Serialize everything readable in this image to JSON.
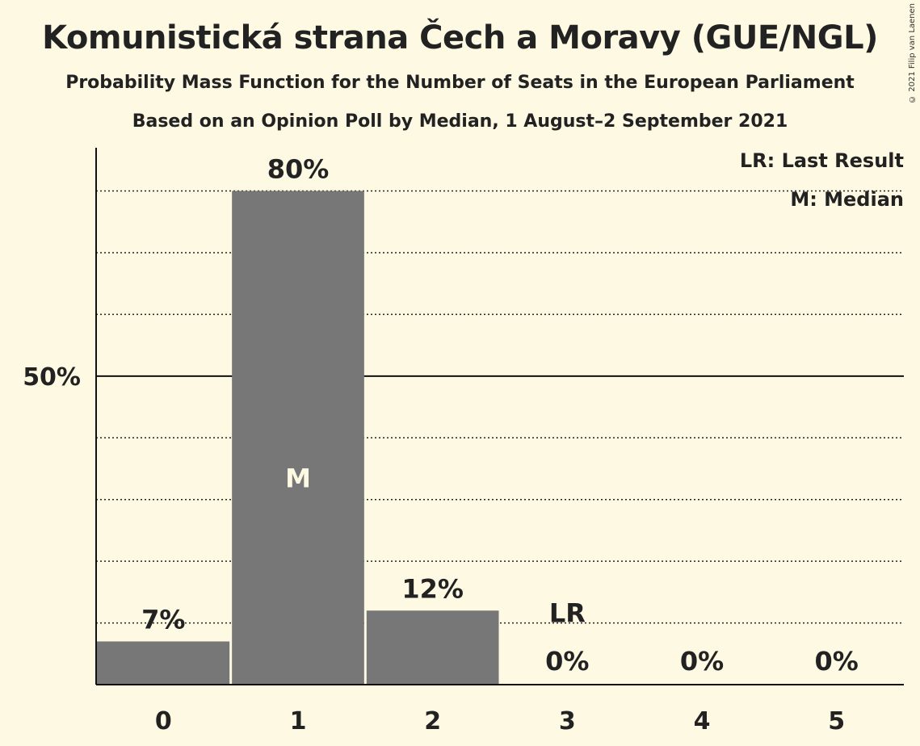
{
  "title": "Komunistická strana Čech a Moravy (GUE/NGL)",
  "subtitle1": "Probability Mass Function for the Number of Seats in the European Parliament",
  "subtitle2": "Based on an Opinion Poll by Median, 1 August–2 September 2021",
  "copyright": "© 2021 Filip van Laenen",
  "legend": {
    "last_result": "LR: Last Result",
    "median": "M: Median"
  },
  "colors": {
    "background": "#fdf9e2",
    "bar": "#777777",
    "text": "#222222",
    "median_marker": "#fdf9e2"
  },
  "chart_data": {
    "type": "bar",
    "title": "Komunistická strana Čech a Moravy (GUE/NGL)",
    "xlabel": "",
    "ylabel": "",
    "categories": [
      "0",
      "1",
      "2",
      "3",
      "4",
      "5"
    ],
    "values": [
      7,
      80,
      12,
      0,
      0,
      0
    ],
    "data_labels": [
      "7%",
      "80%",
      "12%",
      "0%",
      "0%",
      "0%"
    ],
    "ylim": [
      0,
      87
    ],
    "y_tick_label": "50%",
    "y_tick_value": 50,
    "grid": "dotted every 10%",
    "median_category": "1",
    "median_label": "M",
    "last_result_category": "3",
    "last_result_label": "LR",
    "last_result_level": 10,
    "legend_position": "top-right"
  }
}
